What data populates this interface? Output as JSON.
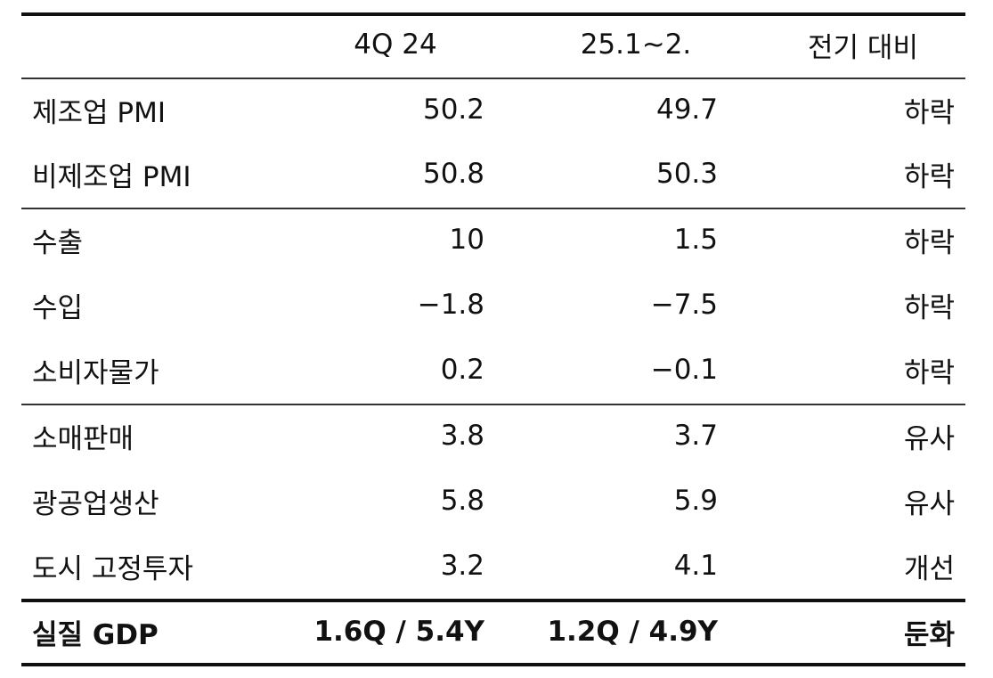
{
  "header": {
    "q4_label": "4Q 24",
    "y25_label": "25.1~2.",
    "compare_label": "전기 대비"
  },
  "rows": [
    {
      "label": "제조업 PMI",
      "q4": "50.2",
      "y25": "49.7",
      "compare": "하락"
    },
    {
      "label": "비제조업 PMI",
      "q4": "50.8",
      "y25": "50.3",
      "compare": "하락"
    },
    {
      "label": "수출",
      "q4": "10",
      "y25": "1.5",
      "compare": "하락"
    },
    {
      "label": "수입",
      "q4": "−1.8",
      "y25": "−7.5",
      "compare": "하락"
    },
    {
      "label": "소비자물가",
      "q4": "0.2",
      "y25": "−0.1",
      "compare": "하락"
    },
    {
      "label": "소매판매",
      "q4": "3.8",
      "y25": "3.7",
      "compare": "유사"
    },
    {
      "label": "광공업생산",
      "q4": "5.8",
      "y25": "5.9",
      "compare": "유사"
    },
    {
      "label": "도시 고정투자",
      "q4": "3.2",
      "y25": "4.1",
      "compare": "개선"
    },
    {
      "label": "실질 GDP",
      "q4": "1.6Q / 5.4Y",
      "y25": "1.2Q / 4.9Y",
      "compare": "둔화"
    }
  ]
}
